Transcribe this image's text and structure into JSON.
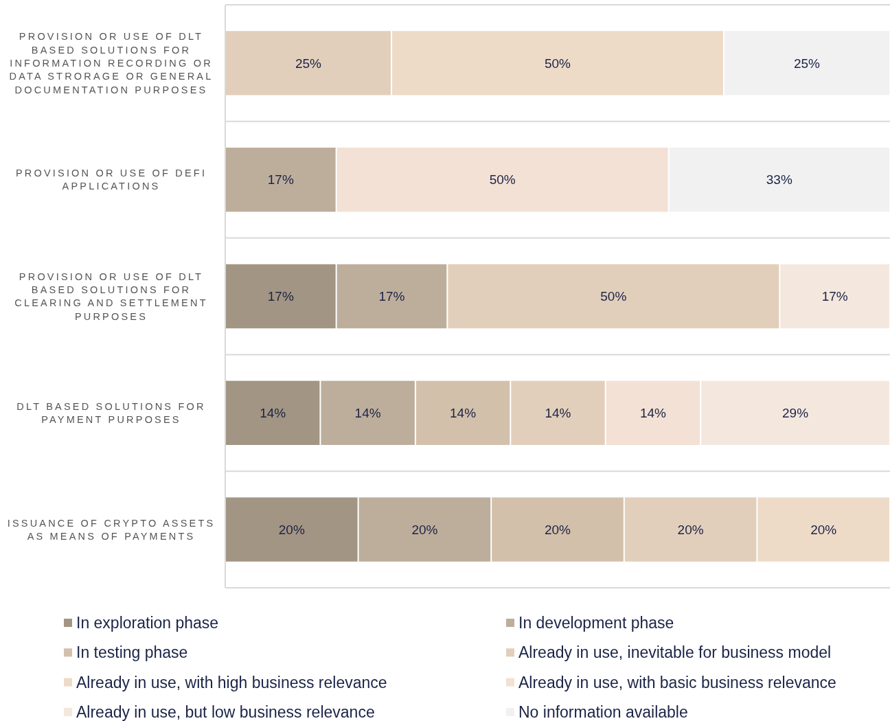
{
  "chart_data": {
    "type": "bar",
    "orientation": "horizontal",
    "stacked": true,
    "categories": [
      "PROVISION OR USE OF DLT BASED SOLUTIONS FOR INFORMATION RECORDING OR DATA STRORAGE OR GENERAL DOCUMENTATION PURPOSES",
      "PROVISION OR USE OF DEFI APPLICATIONS",
      "PROVISION OR USE OF DLT BASED SOLUTIONS FOR CLEARING AND SETTLEMENT PURPOSES",
      "DLT BASED SOLUTIONS FOR PAYMENT PURPOSES",
      "ISSUANCE OF CRYPTO ASSETS AS MEANS OF PAYMENTS"
    ],
    "xlim": [
      0,
      100
    ],
    "tick_labels": "y",
    "grid": "y",
    "legend": "bottom",
    "series": [
      {
        "name": "In exploration phase",
        "color": "#a39584",
        "values": [
          null,
          null,
          16.7,
          14.3,
          20
        ],
        "value_labels": [
          null,
          null,
          "17%",
          "14%",
          "20%"
        ]
      },
      {
        "name": "In development phase",
        "color": "#bdae9c",
        "values": [
          null,
          16.7,
          16.7,
          14.3,
          20
        ],
        "value_labels": [
          null,
          "17%",
          "17%",
          "14%",
          "20%"
        ]
      },
      {
        "name": "In testing phase",
        "color": "#d3c0ab",
        "values": [
          null,
          null,
          null,
          14.3,
          20
        ],
        "value_labels": [
          null,
          null,
          null,
          "14%",
          "20%"
        ]
      },
      {
        "name": "Already in use, inevitable for business model",
        "color": "#e2cfbb",
        "values": [
          25,
          null,
          50,
          14.3,
          20
        ],
        "value_labels": [
          "25%",
          null,
          "50%",
          "14%",
          "20%"
        ]
      },
      {
        "name": "Already in use, with high business relevance",
        "color": "#eddbc8",
        "values": [
          50,
          null,
          null,
          null,
          20
        ],
        "value_labels": [
          "50%",
          null,
          null,
          null,
          "20%"
        ]
      },
      {
        "name": "Already in use, with basic business relevance",
        "color": "#f2e1d4",
        "values": [
          null,
          50,
          null,
          14.3,
          null
        ],
        "value_labels": [
          null,
          "50%",
          null,
          "14%",
          null
        ]
      },
      {
        "name": "Already in use, but low business relevance",
        "color": "#f4e8de",
        "values": [
          null,
          null,
          16.6,
          28.5,
          null
        ],
        "value_labels": [
          null,
          null,
          "17%",
          "29%",
          null
        ]
      },
      {
        "name": "No information available",
        "color": "#f1f1f1",
        "values": [
          25,
          33.3,
          null,
          null,
          null
        ],
        "value_labels": [
          "25%",
          "33%",
          null,
          null,
          null
        ]
      }
    ]
  }
}
